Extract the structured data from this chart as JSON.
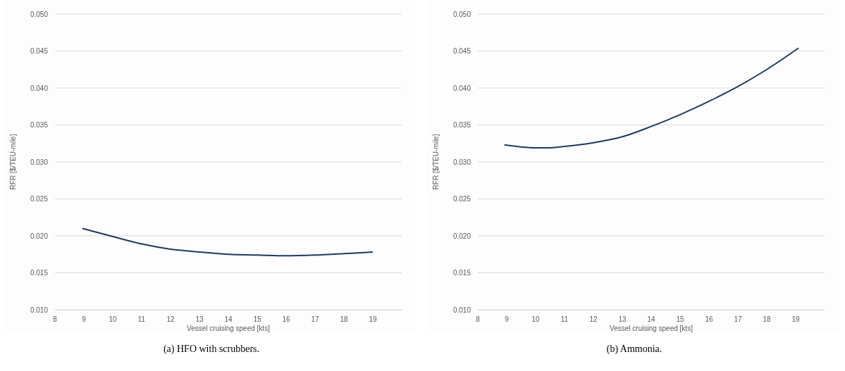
{
  "chart_data": [
    {
      "type": "line",
      "xlabel": "Vessel cruising speed [kts]",
      "ylabel": "RFR  [$/TEU-mile]",
      "annotations": [
        "(a) HFO with scrubbers."
      ],
      "xlim": [
        8,
        20
      ],
      "xticks": [
        8,
        9,
        10,
        11,
        12,
        13,
        14,
        15,
        16,
        17,
        18,
        19
      ],
      "ylim": [
        0.01,
        0.05
      ],
      "yticks": [
        {
          "value": 0.01,
          "label": "0.010"
        },
        {
          "value": 0.015,
          "label": "0.015"
        },
        {
          "value": 0.02,
          "label": "0.020"
        },
        {
          "value": 0.025,
          "label": "0.025"
        },
        {
          "value": 0.03,
          "label": "0.030"
        },
        {
          "value": 0.035,
          "label": "0.035"
        },
        {
          "value": 0.04,
          "label": "0.040"
        },
        {
          "value": 0.045,
          "label": "0.045"
        },
        {
          "value": 0.05,
          "label": "0.050"
        }
      ],
      "grid": "y",
      "series": [
        {
          "color": "#1f3864",
          "x": [
            8.95,
            10,
            11,
            12,
            13,
            14,
            15,
            16,
            17,
            18,
            19
          ],
          "values": [
            0.021,
            0.0199,
            0.0189,
            0.0182,
            0.0178,
            0.0175,
            0.0174,
            0.0173,
            0.0174,
            0.0176,
            0.0178
          ]
        }
      ]
    },
    {
      "type": "line",
      "xlabel": "Vessel cruising speed [kts]",
      "ylabel": "RFR  [$/TEU-mile]",
      "annotations": [
        "(b) Ammonia."
      ],
      "xlim": [
        8,
        20
      ],
      "xticks": [
        8,
        9,
        10,
        11,
        12,
        13,
        14,
        15,
        16,
        17,
        18,
        19
      ],
      "ylim": [
        0.01,
        0.05
      ],
      "yticks": [
        {
          "value": 0.01,
          "label": "0.010"
        },
        {
          "value": 0.015,
          "label": "0.015"
        },
        {
          "value": 0.02,
          "label": "0.020"
        },
        {
          "value": 0.025,
          "label": "0.025"
        },
        {
          "value": 0.03,
          "label": "0.030"
        },
        {
          "value": 0.035,
          "label": "0.035"
        },
        {
          "value": 0.04,
          "label": "0.040"
        },
        {
          "value": 0.045,
          "label": "0.045"
        },
        {
          "value": 0.05,
          "label": "0.050"
        }
      ],
      "grid": "y",
      "series": [
        {
          "color": "#1f3864",
          "x": [
            8.92,
            10,
            10.4,
            11,
            12,
            13,
            14,
            15,
            16,
            17,
            18,
            19.1
          ],
          "values": [
            0.0323,
            0.0319,
            0.0319,
            0.0321,
            0.0326,
            0.0334,
            0.0348,
            0.0364,
            0.0382,
            0.0402,
            0.0425,
            0.0454
          ]
        }
      ]
    }
  ]
}
